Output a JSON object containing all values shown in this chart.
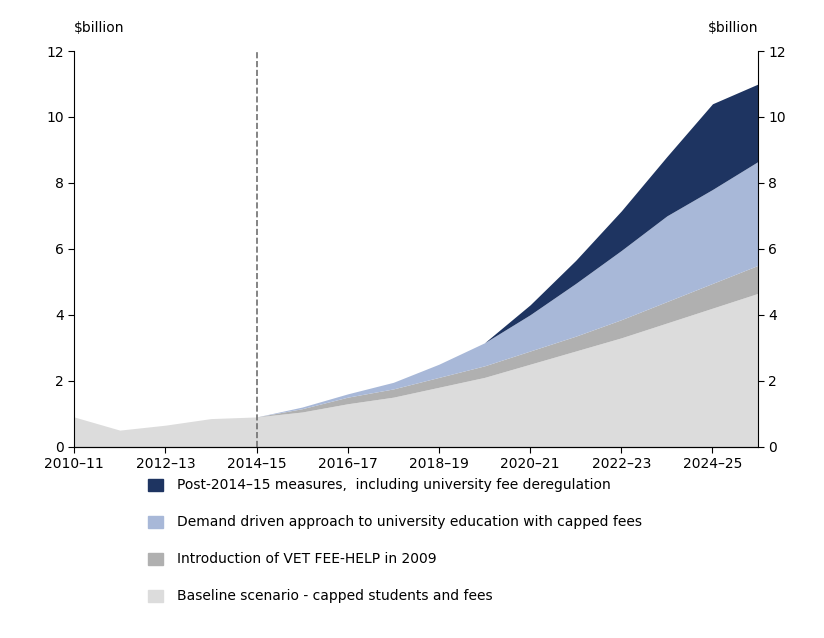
{
  "x_values": [
    0,
    1,
    2,
    3,
    4,
    5,
    6,
    7,
    8,
    9,
    10,
    11,
    12,
    13,
    14,
    15
  ],
  "x_tick_labels": [
    "2010–11",
    "2012–13",
    "2014–15",
    "2016–17",
    "2018–19",
    "2020–21",
    "2022–23",
    "2024–25"
  ],
  "x_tick_positions": [
    0,
    2,
    4,
    6,
    8,
    10,
    12,
    14
  ],
  "baseline": [
    0.9,
    0.5,
    0.65,
    0.85,
    0.9,
    1.05,
    1.3,
    1.5,
    1.8,
    2.1,
    2.5,
    2.9,
    3.3,
    3.75,
    4.2,
    4.65
  ],
  "vet_fee_help": [
    0.0,
    0.0,
    0.0,
    0.0,
    0.0,
    0.1,
    0.2,
    0.25,
    0.3,
    0.35,
    0.4,
    0.45,
    0.55,
    0.65,
    0.75,
    0.85
  ],
  "demand_driven": [
    0.0,
    0.0,
    0.0,
    0.0,
    0.0,
    0.05,
    0.1,
    0.2,
    0.4,
    0.7,
    1.1,
    1.6,
    2.1,
    2.6,
    2.85,
    3.15
  ],
  "post_2014": [
    0.0,
    0.0,
    0.0,
    0.0,
    0.0,
    0.0,
    0.0,
    0.0,
    0.0,
    0.0,
    0.3,
    0.7,
    1.2,
    1.8,
    2.6,
    2.35
  ],
  "color_baseline": "#dcdcdc",
  "color_vet": "#b0b0b0",
  "color_demand": "#a8b8d8",
  "color_post2014": "#1e3461",
  "dashed_line_x": 4,
  "ylim": [
    0,
    12
  ],
  "yticks": [
    0,
    2,
    4,
    6,
    8,
    10,
    12
  ],
  "ylabel_left": "$billion",
  "ylabel_right": "$billion",
  "legend_labels": [
    "Post-2014–15 measures,  including university fee deregulation",
    "Demand driven approach to university education with capped fees",
    "Introduction of VET FEE-HELP in 2009",
    "Baseline scenario - capped students and fees"
  ],
  "colors_legend": [
    "#1e3461",
    "#a8b8d8",
    "#b0b0b0",
    "#dcdcdc"
  ],
  "background_color": "#ffffff",
  "font_size": 10,
  "tick_label_size": 10
}
